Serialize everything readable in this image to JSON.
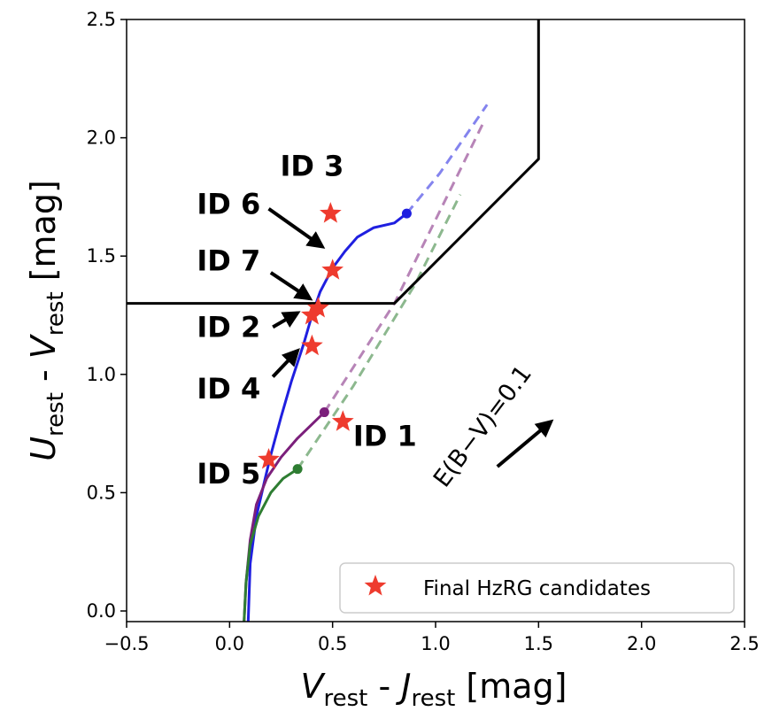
{
  "chart_data": {
    "type": "scatter",
    "xlabel": {
      "main1": "V",
      "sub1": "rest",
      "sep": " - ",
      "main2": "J",
      "sub2": "rest",
      "unit": " [mag]"
    },
    "ylabel": {
      "main1": "U",
      "sub1": "rest",
      "sep": " - ",
      "main2": "V",
      "sub2": "rest",
      "unit": " [mag]"
    },
    "xlim": [
      -0.5,
      2.5
    ],
    "ylim": [
      -0.05,
      2.5
    ],
    "x_ticks": [
      -0.5,
      0.0,
      0.5,
      1.0,
      1.5,
      2.0,
      2.5
    ],
    "x_tick_labels": [
      "−0.5",
      "0.0",
      "0.5",
      "1.0",
      "1.5",
      "2.0",
      "2.5"
    ],
    "y_ticks": [
      0.0,
      0.5,
      1.0,
      1.5,
      2.0,
      2.5
    ],
    "y_tick_labels": [
      "0.0",
      "0.5",
      "1.0",
      "1.5",
      "2.0",
      "2.5"
    ],
    "selection_boundary": {
      "color": "#000000",
      "points": [
        [
          -0.5,
          1.3
        ],
        [
          0.8,
          1.3
        ],
        [
          1.5,
          1.91
        ],
        [
          1.5,
          2.5
        ]
      ]
    },
    "tracks": [
      {
        "name": "blue",
        "color": "#1f1fe0",
        "solid": [
          [
            0.09,
            -0.05
          ],
          [
            0.1,
            0.2
          ],
          [
            0.13,
            0.4
          ],
          [
            0.17,
            0.55
          ],
          [
            0.2,
            0.66
          ],
          [
            0.25,
            0.82
          ],
          [
            0.3,
            0.97
          ],
          [
            0.36,
            1.13
          ],
          [
            0.4,
            1.25
          ],
          [
            0.44,
            1.35
          ],
          [
            0.5,
            1.45
          ],
          [
            0.56,
            1.52
          ],
          [
            0.62,
            1.58
          ],
          [
            0.7,
            1.62
          ],
          [
            0.8,
            1.64
          ],
          [
            0.86,
            1.68
          ]
        ],
        "end_point": [
          0.86,
          1.68
        ],
        "dashed": [
          [
            0.86,
            1.68
          ],
          [
            1.02,
            1.85
          ],
          [
            1.25,
            2.14
          ]
        ]
      },
      {
        "name": "purple",
        "color": "#7b1f7b",
        "solid": [
          [
            0.07,
            -0.05
          ],
          [
            0.08,
            0.12
          ],
          [
            0.1,
            0.3
          ],
          [
            0.13,
            0.45
          ],
          [
            0.18,
            0.56
          ],
          [
            0.25,
            0.65
          ],
          [
            0.33,
            0.73
          ],
          [
            0.46,
            0.84
          ]
        ],
        "end_point": [
          0.46,
          0.84
        ],
        "dashed": [
          [
            0.46,
            0.84
          ],
          [
            0.8,
            1.3
          ],
          [
            1.23,
            2.06
          ]
        ]
      },
      {
        "name": "green",
        "color": "#2e7d32",
        "solid": [
          [
            0.07,
            -0.05
          ],
          [
            0.08,
            0.12
          ],
          [
            0.1,
            0.28
          ],
          [
            0.14,
            0.4
          ],
          [
            0.2,
            0.5
          ],
          [
            0.26,
            0.56
          ],
          [
            0.33,
            0.6
          ]
        ],
        "end_point": [
          0.33,
          0.6
        ],
        "dashed": [
          [
            0.33,
            0.6
          ],
          [
            0.6,
            0.95
          ],
          [
            0.9,
            1.38
          ],
          [
            1.12,
            1.76
          ]
        ]
      }
    ],
    "stars": [
      {
        "id": "ID 1",
        "x": 0.55,
        "y": 0.8
      },
      {
        "id": "ID 2",
        "x": 0.4,
        "y": 1.25
      },
      {
        "id": "ID 3",
        "x": 0.49,
        "y": 1.68
      },
      {
        "id": "ID 4",
        "x": 0.4,
        "y": 1.12
      },
      {
        "id": "ID 5",
        "x": 0.19,
        "y": 0.64
      },
      {
        "id": "ID 6",
        "x": 0.5,
        "y": 1.44
      },
      {
        "id": "ID 7",
        "x": 0.43,
        "y": 1.28
      }
    ],
    "star_color": "#ee3b2e",
    "id_labels": [
      {
        "text": "ID 3",
        "x": 0.4,
        "y": 1.88,
        "anchor": "middle"
      },
      {
        "text": "ID 6",
        "x": 0.15,
        "y": 1.72,
        "anchor": "end"
      },
      {
        "text": "ID 7",
        "x": 0.15,
        "y": 1.48,
        "anchor": "end"
      },
      {
        "text": "ID 2",
        "x": 0.15,
        "y": 1.2,
        "anchor": "end"
      },
      {
        "text": "ID 4",
        "x": 0.15,
        "y": 0.94,
        "anchor": "end"
      },
      {
        "text": "ID 1",
        "x": 0.6,
        "y": 0.74,
        "anchor": "start"
      },
      {
        "text": "ID 5",
        "x": 0.15,
        "y": 0.58,
        "anchor": "end"
      }
    ],
    "arrows": [
      {
        "from": [
          0.19,
          1.7
        ],
        "to": [
          0.45,
          1.54
        ]
      },
      {
        "from": [
          0.2,
          1.43
        ],
        "to": [
          0.39,
          1.32
        ]
      },
      {
        "from": [
          0.21,
          1.2
        ],
        "to": [
          0.33,
          1.26
        ]
      },
      {
        "from": [
          0.21,
          0.99
        ],
        "to": [
          0.33,
          1.1
        ]
      }
    ],
    "reddening": {
      "label": "E(B−V)=0.1",
      "arrow_from": [
        1.3,
        0.61
      ],
      "arrow_to": [
        1.56,
        0.8
      ]
    },
    "legend": {
      "label": "Final HzRG candidates",
      "position": "lower-right"
    }
  }
}
